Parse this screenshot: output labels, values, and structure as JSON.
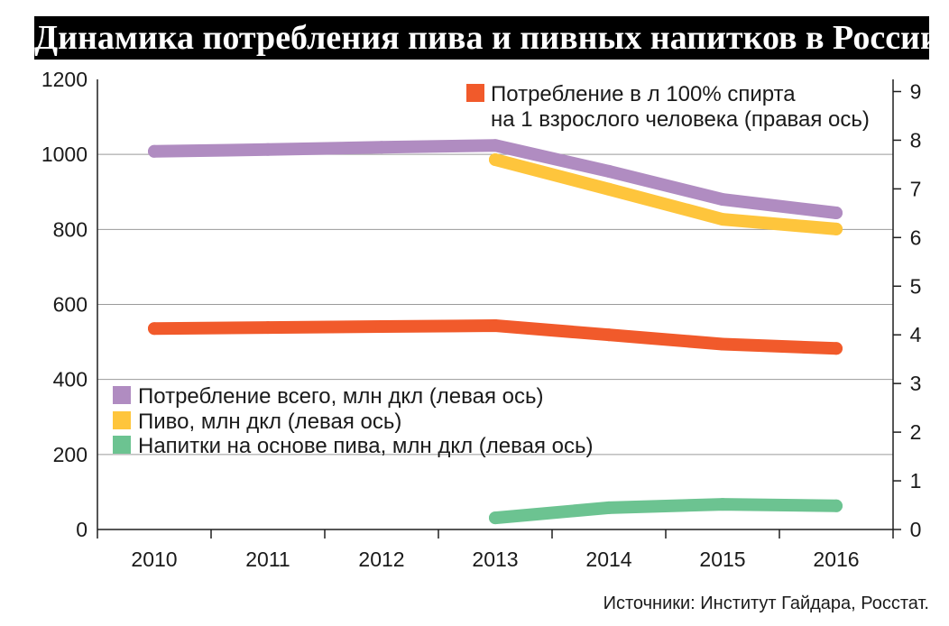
{
  "chart_data": {
    "type": "line",
    "title": "Динамика потребления пива и пивных напитков в России",
    "source": "Источники: Институт Гайдара, Росстат.",
    "categories": [
      "2010",
      "2011",
      "2012",
      "2013",
      "2014",
      "2015",
      "2016"
    ],
    "left_axis": {
      "ylim": [
        0,
        1200
      ],
      "ticks": [
        0,
        200,
        400,
        600,
        800,
        1000,
        1200
      ]
    },
    "right_axis": {
      "ylim": [
        0,
        9.25
      ],
      "ticks": [
        0,
        1,
        2,
        3,
        4,
        5,
        6,
        7,
        8,
        9
      ]
    },
    "grid": true,
    "legend": {
      "left_axis_series": "bottom-left",
      "right_axis_series": "top-right"
    },
    "series": [
      {
        "name": "Потребление всего, млн дкл (левая ось)",
        "axis": "left",
        "color": "#b08cc1",
        "values": [
          1008,
          1013,
          1019,
          1024,
          955,
          880,
          844
        ]
      },
      {
        "name": "Пиво, млн дкл (левая ось)",
        "axis": "left",
        "color": "#fec53c",
        "values": [
          null,
          null,
          null,
          986,
          907,
          827,
          801
        ]
      },
      {
        "name": "Напитки на основе пива, млн дкл (левая ось)",
        "axis": "left",
        "color": "#6cc391",
        "values": [
          null,
          null,
          null,
          31,
          58,
          67,
          63
        ]
      },
      {
        "name_lines": [
          "Потребление в л 100% спирта",
          "на 1 взрослого человека (правая ось)"
        ],
        "axis": "right",
        "color": "#f15a2b",
        "values": [
          4.13,
          4.15,
          4.17,
          4.19,
          4.0,
          3.81,
          3.72
        ]
      }
    ]
  }
}
